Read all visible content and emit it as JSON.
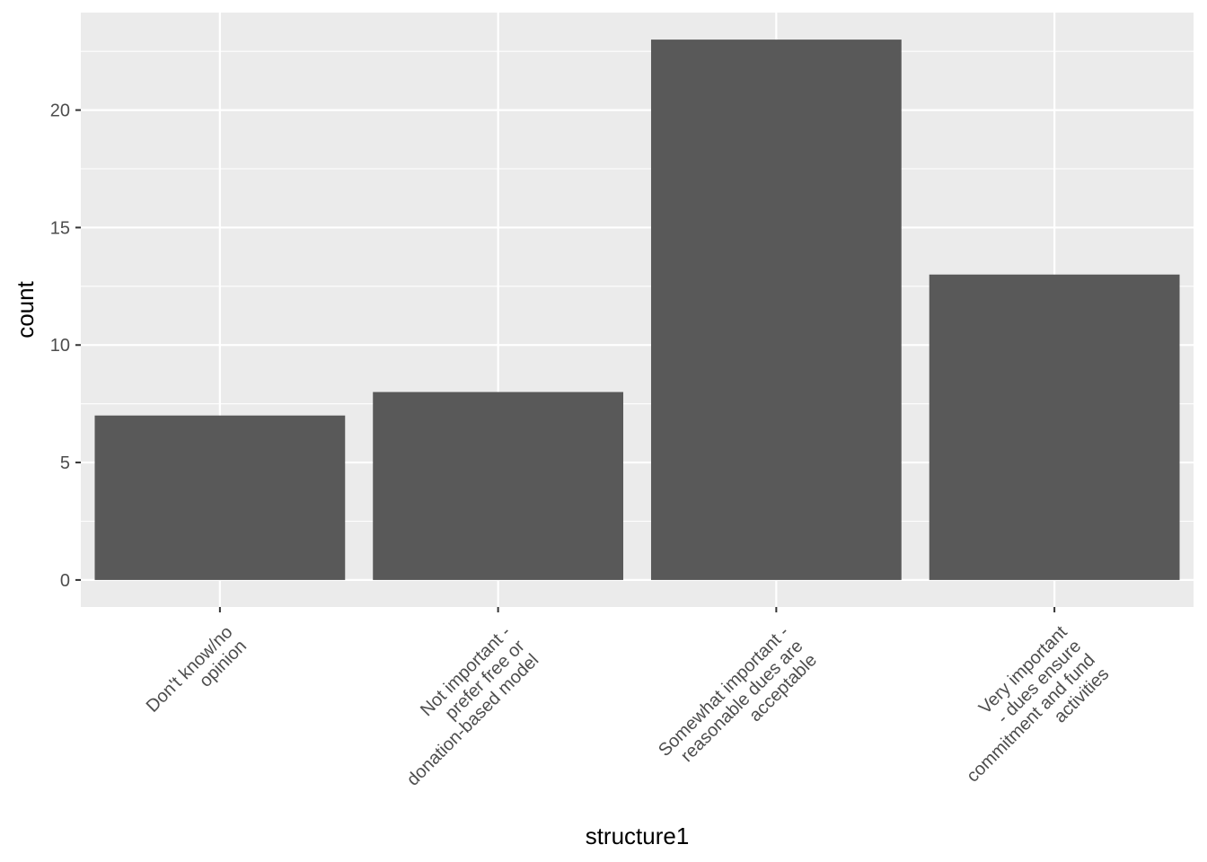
{
  "chart_data": {
    "type": "bar",
    "categories": [
      [
        "Don't know/no",
        "opinion"
      ],
      [
        "Not important -",
        "prefer free or",
        "donation-based model"
      ],
      [
        "Somewhat important -",
        "reasonable dues are",
        "acceptable"
      ],
      [
        "Very important",
        "- dues ensure",
        "commitment and fund",
        "activities"
      ]
    ],
    "values": [
      7,
      8,
      23,
      13
    ],
    "xlabel": "structure1",
    "ylabel": "count",
    "ylim": [
      -1.15,
      24.15
    ],
    "yticks": [
      0,
      5,
      10,
      15,
      20
    ],
    "grid": true,
    "colors": {
      "panel": "#ebebeb",
      "grid": "#ffffff",
      "bar": "#595959",
      "tick": "#333333"
    }
  }
}
